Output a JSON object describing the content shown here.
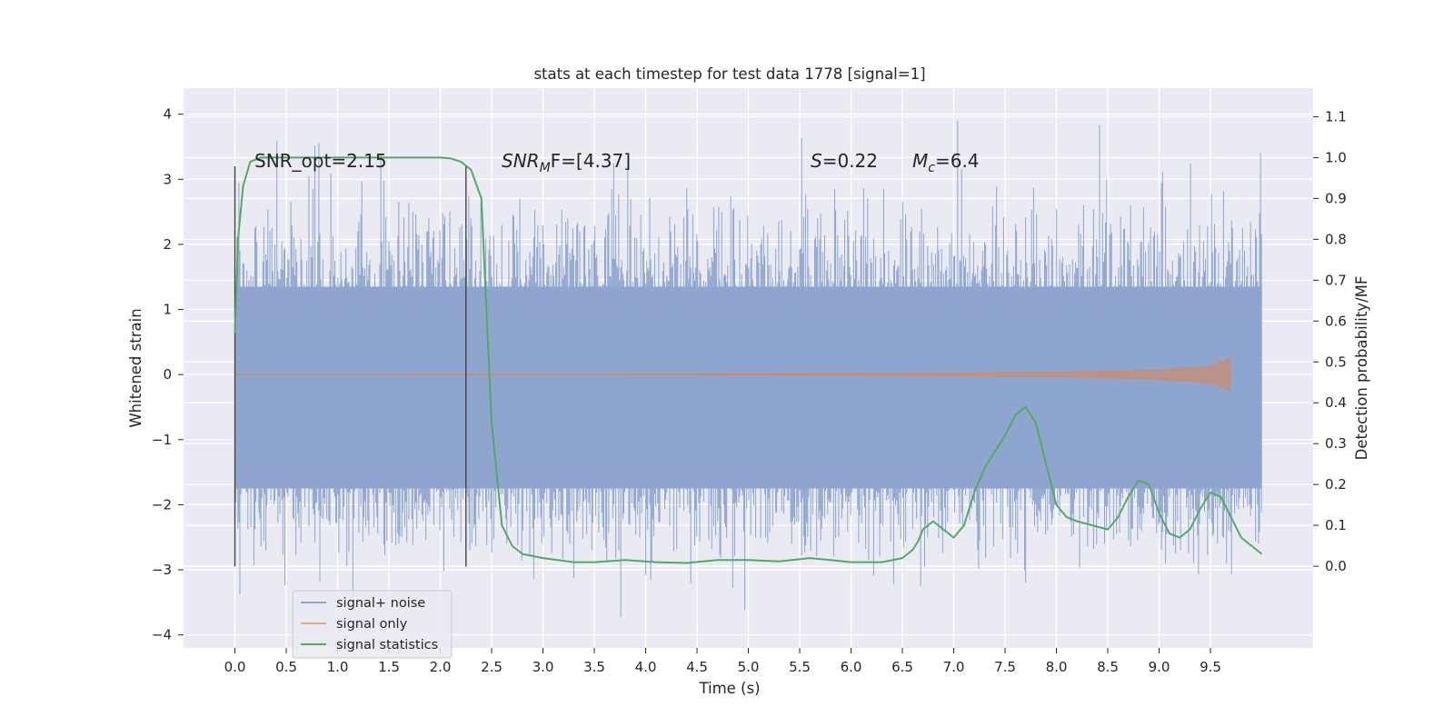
{
  "chart_data": {
    "type": "line",
    "title": "stats at each timestep for test data 1778 [signal=1]",
    "xlabel": "Time (s)",
    "ylabel": "Whitened strain",
    "ylabel_right": "Detection probability/MF",
    "xlim": [
      -0.5,
      10.5
    ],
    "ylim": [
      -4.2,
      4.4
    ],
    "ylim_right": [
      -0.2,
      1.17
    ],
    "x_ticks": [
      "0.0",
      "0.5",
      "1.0",
      "1.5",
      "2.0",
      "2.5",
      "3.0",
      "3.5",
      "4.0",
      "4.5",
      "5.0",
      "5.5",
      "6.0",
      "6.5",
      "7.0",
      "7.5",
      "8.0",
      "8.5",
      "9.0",
      "9.5"
    ],
    "y_ticks": [
      "4",
      "3",
      "2",
      "1",
      "0",
      "−1",
      "−2",
      "−3",
      "−4"
    ],
    "y_ticks_right": [
      "1.1",
      "1.0",
      "0.9",
      "0.8",
      "0.7",
      "0.6",
      "0.5",
      "0.4",
      "0.3",
      "0.2",
      "0.1",
      "0.0"
    ],
    "grid": true,
    "legend_position": "lower-left",
    "annotations": {
      "snr_opt": "SNR_opt=2.15",
      "snr_mf_main": "SNR",
      "snr_mf_sub": "M",
      "snr_mf_rest": "F=[4.37]",
      "s_symbol": "S",
      "s_value": "=0.22",
      "mc_symbol": "M",
      "mc_sub": "c",
      "mc_value": "=6.4"
    },
    "vertical_markers": [
      0.0,
      2.25
    ],
    "series": [
      {
        "name": "signal+ noise",
        "color": "#8fa5cf",
        "axis": "left",
        "x_range": [
          0.0,
          10.0
        ],
        "band_ylim": [
          -1.75,
          1.35
        ],
        "spike_ylim": [
          -3.8,
          4.05
        ],
        "seed": 1778
      },
      {
        "name": "signal only",
        "color": "#dd8452",
        "axis": "left",
        "x": [
          0.0,
          1.0,
          2.0,
          3.0,
          4.0,
          5.0,
          6.0,
          7.0,
          8.0,
          9.0,
          9.5,
          9.62,
          9.68,
          9.7
        ],
        "amplitude": [
          0.003,
          0.004,
          0.005,
          0.006,
          0.008,
          0.011,
          0.015,
          0.022,
          0.035,
          0.07,
          0.13,
          0.2,
          0.25,
          0.0
        ]
      },
      {
        "name": "signal statistics",
        "color": "#55a868",
        "axis": "right",
        "x": [
          0.0,
          0.03,
          0.08,
          0.15,
          0.25,
          0.5,
          1.0,
          1.5,
          2.0,
          2.1,
          2.2,
          2.3,
          2.4,
          2.5,
          2.6,
          2.7,
          2.8,
          3.0,
          3.3,
          3.5,
          3.8,
          4.1,
          4.4,
          4.7,
          5.0,
          5.3,
          5.6,
          5.8,
          6.0,
          6.3,
          6.5,
          6.6,
          6.65,
          6.7,
          6.8,
          6.9,
          7.0,
          7.1,
          7.2,
          7.3,
          7.4,
          7.5,
          7.6,
          7.7,
          7.8,
          7.9,
          8.0,
          8.1,
          8.2,
          8.35,
          8.5,
          8.6,
          8.7,
          8.8,
          8.9,
          9.0,
          9.1,
          9.2,
          9.3,
          9.4,
          9.5,
          9.6,
          9.7,
          9.8,
          9.9,
          10.0
        ],
        "values": [
          0.57,
          0.8,
          0.93,
          0.99,
          1.0,
          1.0,
          1.0,
          1.0,
          1.0,
          0.998,
          0.99,
          0.97,
          0.9,
          0.35,
          0.1,
          0.05,
          0.03,
          0.02,
          0.01,
          0.01,
          0.015,
          0.01,
          0.008,
          0.015,
          0.015,
          0.012,
          0.02,
          0.015,
          0.01,
          0.01,
          0.02,
          0.04,
          0.06,
          0.09,
          0.11,
          0.09,
          0.07,
          0.1,
          0.18,
          0.24,
          0.28,
          0.32,
          0.37,
          0.39,
          0.35,
          0.25,
          0.15,
          0.12,
          0.11,
          0.1,
          0.09,
          0.12,
          0.17,
          0.21,
          0.2,
          0.13,
          0.08,
          0.07,
          0.09,
          0.14,
          0.18,
          0.17,
          0.12,
          0.07,
          0.05,
          0.03
        ]
      }
    ]
  }
}
